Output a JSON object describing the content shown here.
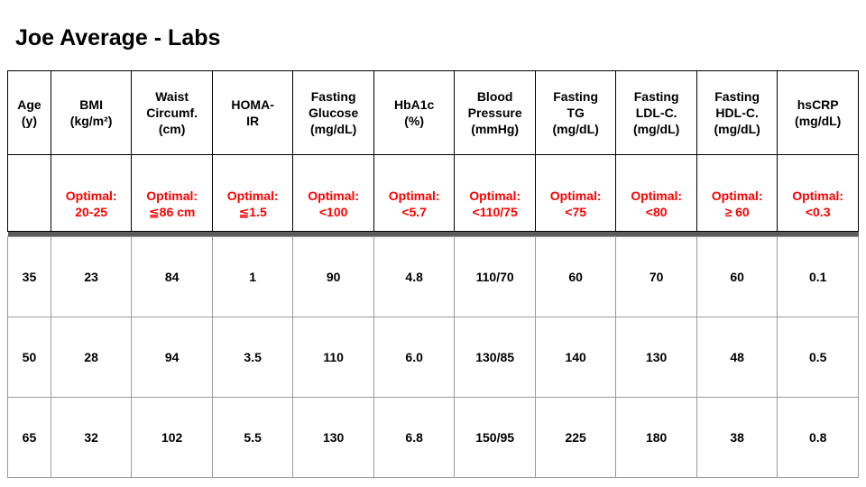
{
  "slide": {
    "title": "Joe Average - Labs"
  },
  "colors": {
    "optimal_text": "#ff0000",
    "header_border": "#000000",
    "body_border": "#9b9b9b",
    "section_divider": "#5c5c5c",
    "background": "#ffffff"
  },
  "table": {
    "headers": [
      "Age\n(y)",
      "BMI\n(kg/m²)",
      "Waist\nCircumf.\n(cm)",
      "HOMA-\nIR",
      "Fasting\nGlucose\n(mg/dL)",
      "HbA1c\n(%)",
      "Blood\nPressure\n(mmHg)",
      "Fasting\nTG\n(mg/dL)",
      "Fasting\nLDL-C.\n(mg/dL)",
      "Fasting\nHDL-C.\n(mg/dL)",
      "hsCRP\n(mg/dL)"
    ],
    "optimal": [
      "",
      "Optimal:\n20-25",
      "Optimal:\n≦86 cm",
      "Optimal:\n≦1.5",
      "Optimal:\n<100",
      "Optimal:\n<5.7",
      "Optimal:\n<110/75",
      "Optimal:\n<75",
      "Optimal:\n<80",
      "Optimal:\n≥ 60",
      "Optimal:\n<0.3"
    ],
    "rows": [
      [
        "35",
        "23",
        "84",
        "1",
        "90",
        "4.8",
        "110/70",
        "60",
        "70",
        "60",
        "0.1"
      ],
      [
        "50",
        "28",
        "94",
        "3.5",
        "110",
        "6.0",
        "130/85",
        "140",
        "130",
        "48",
        "0.5"
      ],
      [
        "65",
        "32",
        "102",
        "5.5",
        "130",
        "6.8",
        "150/95",
        "225",
        "180",
        "38",
        "0.8"
      ]
    ]
  }
}
